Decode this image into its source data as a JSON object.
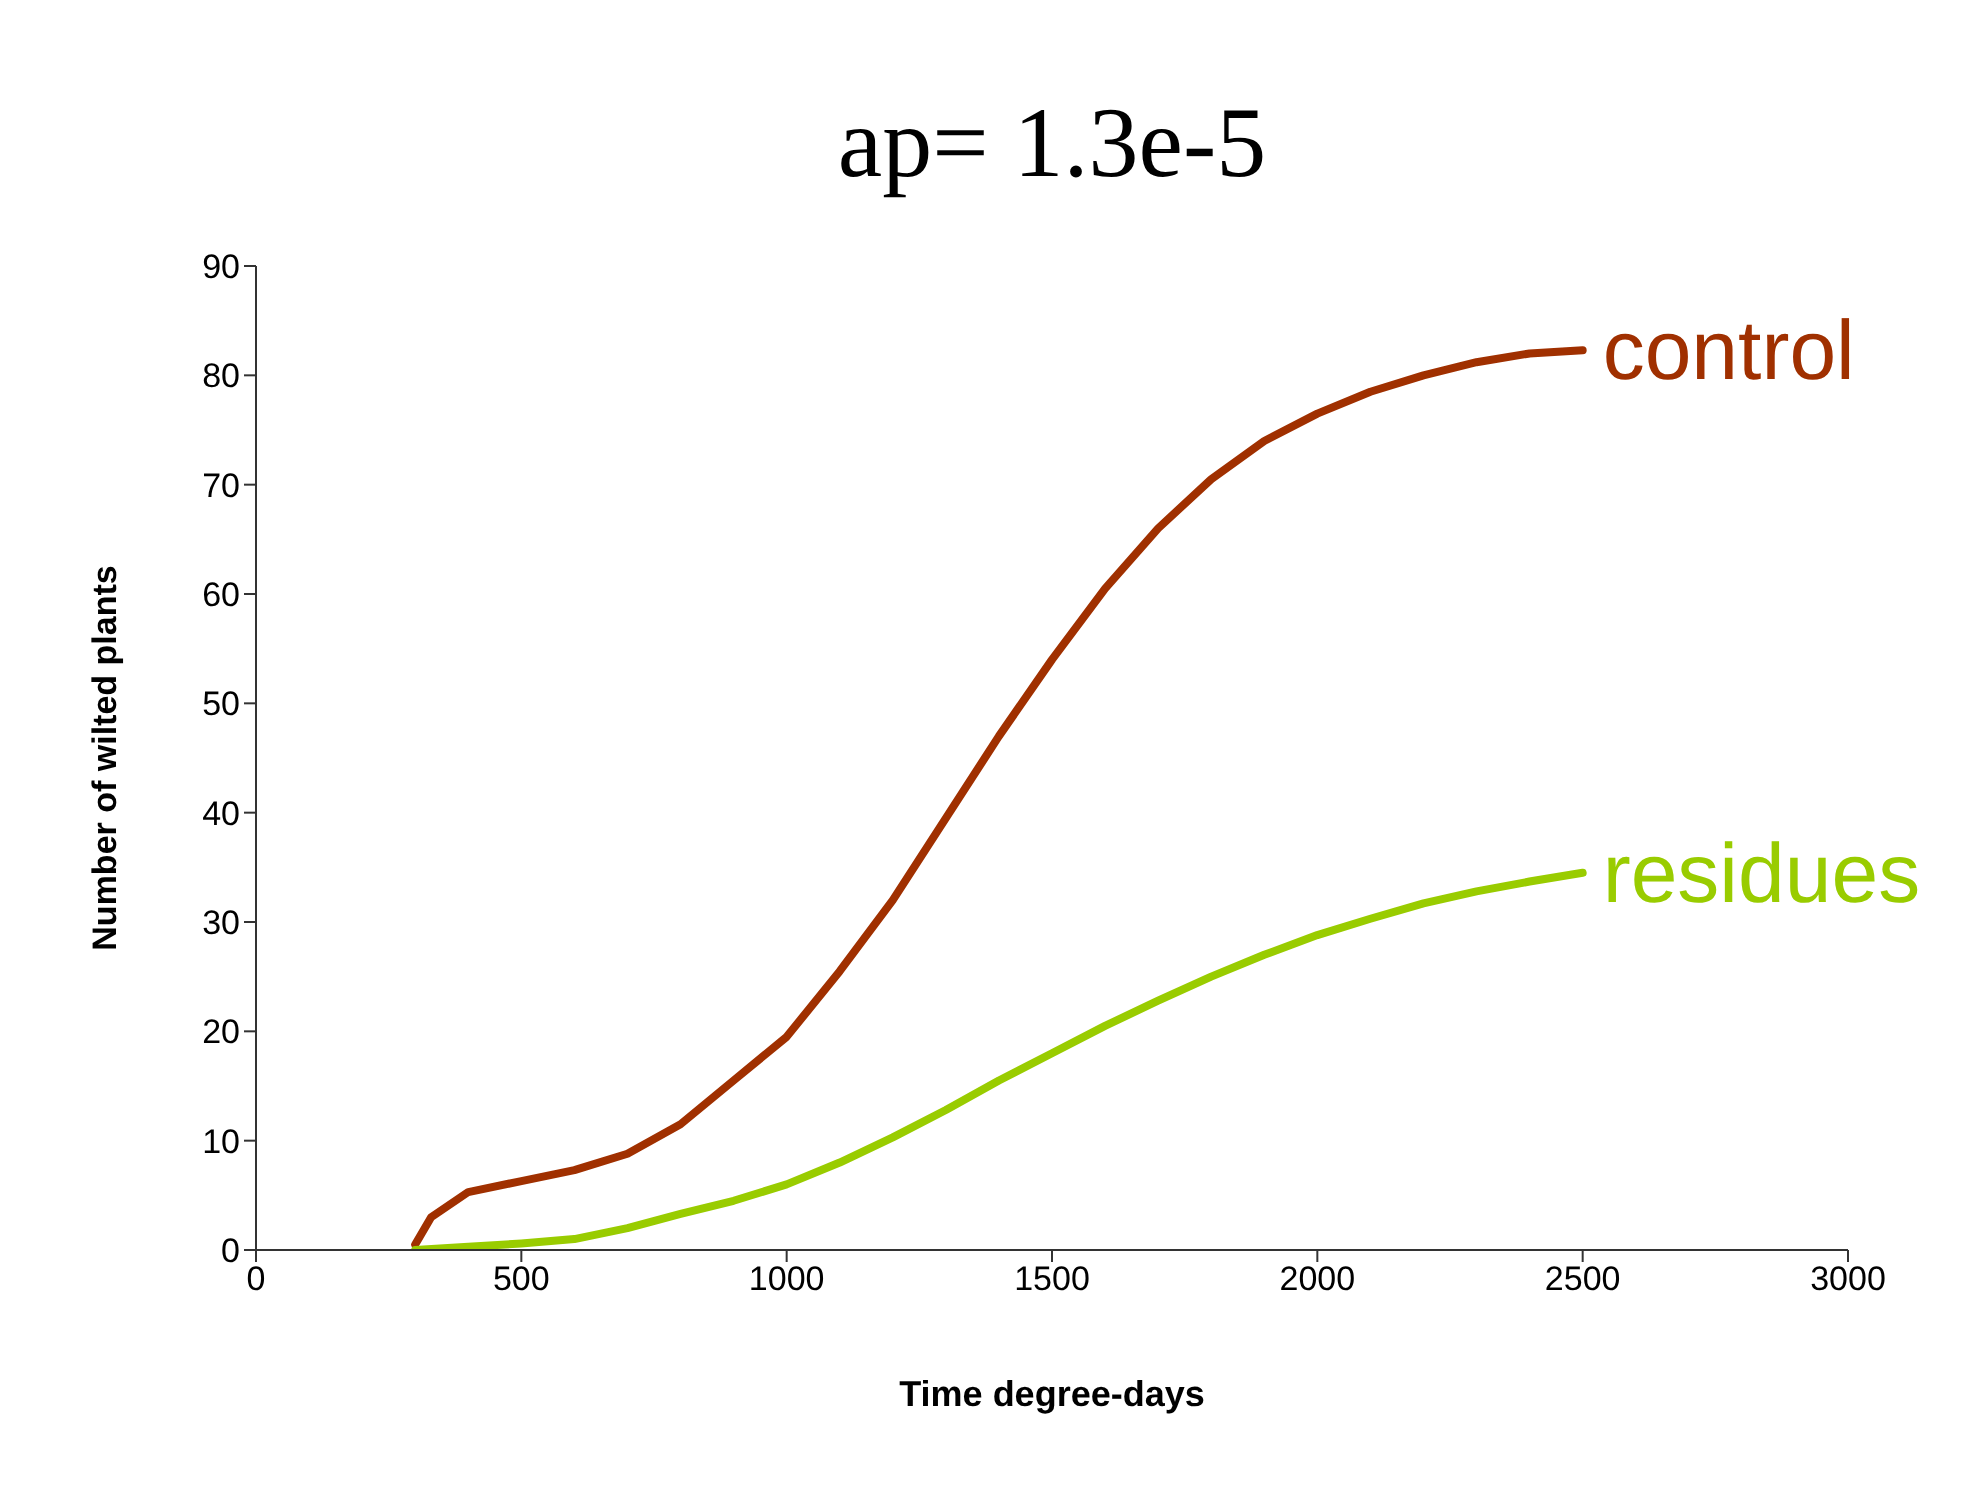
{
  "chart_data": {
    "type": "line",
    "title": "ap= 1.3e-5",
    "xlabel": "Time degree-days",
    "ylabel": "Number of wilted plants",
    "xlim": [
      0,
      3000
    ],
    "xticks": [
      0,
      500,
      1000,
      1500,
      2000,
      2500,
      3000
    ],
    "ylim": [
      0,
      90
    ],
    "yticks": [
      0,
      10,
      20,
      30,
      40,
      50,
      60,
      70,
      80,
      90
    ],
    "grid": false,
    "legend": false,
    "marker": "none",
    "line_style": "solid",
    "series": [
      {
        "name": "control",
        "color": "#a03000",
        "x": [
          300,
          330,
          400,
          500,
          600,
          700,
          800,
          900,
          1000,
          1100,
          1200,
          1300,
          1400,
          1500,
          1600,
          1700,
          1800,
          1900,
          2000,
          2100,
          2200,
          2300,
          2400,
          2500
        ],
        "values": [
          0.5,
          3,
          5.3,
          6.3,
          7.3,
          8.8,
          11.5,
          15.5,
          19.5,
          25.5,
          32,
          39.5,
          47,
          54,
          60.5,
          66,
          70.5,
          74,
          76.5,
          78.5,
          80,
          81.2,
          82,
          82.3
        ]
      },
      {
        "name": "residues",
        "color": "#99cc00",
        "x": [
          300,
          400,
          500,
          600,
          700,
          800,
          900,
          1000,
          1100,
          1200,
          1300,
          1400,
          1500,
          1600,
          1700,
          1800,
          1900,
          2000,
          2100,
          2200,
          2300,
          2400,
          2500
        ],
        "values": [
          0,
          0.3,
          0.6,
          1,
          2,
          3.3,
          4.5,
          6,
          8,
          10.3,
          12.8,
          15.5,
          18,
          20.5,
          22.8,
          25,
          27,
          28.8,
          30.3,
          31.7,
          32.8,
          33.7,
          34.5
        ]
      }
    ]
  }
}
